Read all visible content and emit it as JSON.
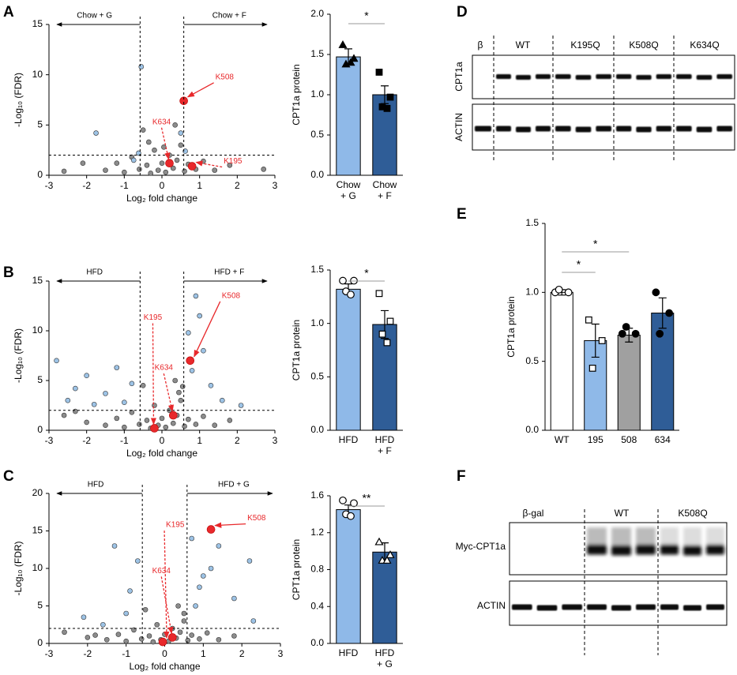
{
  "panel_labels": [
    "A",
    "B",
    "C",
    "D",
    "E",
    "F"
  ],
  "chart_data": [
    {
      "type": "scatter",
      "xlabel": "Log₂ fold change",
      "ylabel": "-Log₁₀ (FDR)",
      "xlim": [
        -3,
        3
      ],
      "xticks": [
        -3,
        -2,
        -1,
        0,
        1,
        2,
        3
      ],
      "ylim": [
        0,
        15
      ],
      "yticks": [
        0,
        5,
        10,
        15
      ],
      "hline": 2,
      "vlines": [
        -0.58,
        0.58
      ],
      "region_labels": [
        "Chow + G",
        "Chow + F"
      ],
      "series": [
        {
          "color": "#8c8c8c",
          "x": [
            -2.6,
            -2.1,
            -1.5,
            -1.2,
            -1.0,
            -0.8,
            -0.6,
            -0.4,
            -0.3,
            -0.2,
            -0.1,
            0.0,
            0.1,
            0.2,
            0.3,
            0.4,
            0.5,
            0.6,
            0.7,
            0.9,
            1.1,
            1.4,
            1.8,
            -0.5,
            0.35,
            2.7,
            -0.35,
            0.05
          ],
          "y": [
            0.4,
            1.2,
            0.5,
            1.2,
            0.3,
            1.8,
            0.6,
            1.0,
            0.2,
            2.5,
            0.5,
            1.2,
            0.3,
            2.0,
            0.7,
            1.5,
            3.0,
            0.4,
            1.1,
            0.6,
            1.4,
            0.5,
            1.0,
            4.5,
            5.0,
            0.6,
            3.3,
            2.8
          ]
        },
        {
          "color": "#9dc3e6",
          "x": [
            -0.55,
            -0.75,
            -1.75,
            0.5,
            0.62,
            -0.62
          ],
          "y": [
            10.8,
            1.5,
            4.2,
            4.2,
            2.4,
            2.2
          ]
        },
        {
          "color": "#e8282b",
          "x": [
            0.58,
            0.2,
            0.8
          ],
          "y": [
            7.4,
            1.2,
            0.9
          ],
          "labels": [
            "K508",
            "K634",
            "K195"
          ]
        }
      ]
    },
    {
      "type": "bar",
      "ylabel": "CPT1a protein",
      "categories": [
        "Chow\n+ G",
        "Chow\n+ F"
      ],
      "values": [
        1.47,
        1.0
      ],
      "errors": [
        0.1,
        0.11
      ],
      "colors": [
        "#8fb9e8",
        "#2f5d97"
      ],
      "points": [
        [
          1.62,
          1.45,
          1.38,
          1.4
        ],
        [
          1.28,
          0.97,
          0.85,
          0.83
        ]
      ],
      "markers": [
        "triangle",
        "square"
      ],
      "filled": [
        true,
        true
      ],
      "ylim": [
        0,
        2
      ],
      "yticks": [
        {
          "value": 0,
          "label": "0.0"
        },
        {
          "value": 0.5,
          "label": "0.5"
        },
        {
          "value": 1,
          "label": "1.0"
        },
        {
          "value": 1.5,
          "label": "1.5"
        },
        {
          "value": 2,
          "label": "2.0"
        }
      ],
      "significance": [
        {
          "from": 0,
          "to": 1,
          "label": "*"
        }
      ]
    },
    {
      "type": "scatter",
      "xlabel": "Log₂ fold change",
      "ylabel": "-Log₁₀ (FDR)",
      "xlim": [
        -3,
        3
      ],
      "xticks": [
        -3,
        -2,
        -1,
        0,
        1,
        2,
        3
      ],
      "ylim": [
        0,
        15
      ],
      "yticks": [
        0,
        5,
        10,
        15
      ],
      "hline": 2,
      "vlines": [
        -0.58,
        0.58
      ],
      "region_labels": [
        "HFD",
        "HFD + F"
      ],
      "series": [
        {
          "color": "#8c8c8c",
          "x": [
            -2.6,
            -2.0,
            -1.5,
            -1.2,
            -1.0,
            -0.8,
            -0.6,
            -0.4,
            -0.3,
            -0.2,
            -0.1,
            0.0,
            0.1,
            0.2,
            0.3,
            0.4,
            0.5,
            0.6,
            0.7,
            0.9,
            1.1,
            1.4,
            1.8,
            -0.5,
            0.35,
            -2.3,
            0.45,
            0.55
          ],
          "y": [
            1.5,
            0.8,
            0.5,
            1.2,
            0.3,
            1.8,
            0.6,
            1.0,
            0.2,
            2.5,
            0.5,
            1.2,
            0.3,
            2.0,
            0.7,
            1.5,
            3.0,
            0.4,
            1.1,
            0.6,
            1.4,
            0.5,
            1.0,
            4.5,
            5.0,
            1.9,
            3.8,
            4.4
          ]
        },
        {
          "color": "#9dc3e6",
          "x": [
            -2.8,
            -2.3,
            -2.0,
            -1.5,
            -1.2,
            -0.8,
            -2.5,
            -1.8,
            0.7,
            0.9,
            1.1,
            1.3,
            0.8,
            1.6,
            2.1,
            1.0,
            -1.0
          ],
          "y": [
            7.0,
            4.2,
            5.5,
            3.7,
            6.3,
            4.7,
            3.0,
            2.6,
            9.8,
            13.5,
            8.0,
            4.5,
            6.0,
            3.0,
            2.5,
            11.5,
            2.8
          ]
        },
        {
          "color": "#e8282b",
          "x": [
            0.75,
            0.3,
            -0.2
          ],
          "y": [
            7.0,
            1.5,
            0.2
          ],
          "labels": [
            "K508",
            "K634",
            "K195"
          ]
        }
      ]
    },
    {
      "type": "bar",
      "ylabel": "CPT1a protein",
      "categories": [
        "HFD",
        "HFD\n+ F"
      ],
      "values": [
        1.32,
        0.99
      ],
      "errors": [
        0.05,
        0.13
      ],
      "colors": [
        "#8fb9e8",
        "#2f5d97"
      ],
      "points": [
        [
          1.4,
          1.4,
          1.3,
          1.27
        ],
        [
          1.28,
          1.02,
          0.9,
          0.82
        ]
      ],
      "markers": [
        "circle",
        "square"
      ],
      "filled": [
        false,
        false
      ],
      "ylim": [
        0,
        1.5
      ],
      "yticks": [
        {
          "value": 0,
          "label": "0.0"
        },
        {
          "value": 0.5,
          "label": "0.5"
        },
        {
          "value": 1,
          "label": "1.0"
        },
        {
          "value": 1.5,
          "label": "1.5"
        }
      ],
      "significance": [
        {
          "from": 0,
          "to": 1,
          "label": "*"
        }
      ]
    },
    {
      "type": "scatter",
      "xlabel": "Log₂ fold change",
      "ylabel": "-Log₁₀ (FDR)",
      "xlim": [
        -3,
        3
      ],
      "xticks": [
        -3,
        -2,
        -1,
        0,
        1,
        2,
        3
      ],
      "ylim": [
        0,
        20
      ],
      "yticks": [
        0,
        5,
        10,
        15,
        20
      ],
      "hline": 2,
      "vlines": [
        -0.58,
        0.58
      ],
      "region_labels": [
        "HFD",
        "HFD + G"
      ],
      "series": [
        {
          "color": "#8c8c8c",
          "x": [
            -2.6,
            -2.0,
            -1.5,
            -1.2,
            -1.0,
            -0.8,
            -0.6,
            -0.4,
            -0.3,
            -0.2,
            -0.1,
            0.0,
            0.1,
            0.2,
            0.3,
            0.4,
            0.5,
            0.6,
            0.7,
            0.9,
            1.1,
            1.4,
            1.8,
            -0.5,
            0.35,
            -1.8,
            0.5
          ],
          "y": [
            1.5,
            0.8,
            0.5,
            1.2,
            0.3,
            1.8,
            0.6,
            1.0,
            0.2,
            2.5,
            0.5,
            1.2,
            0.3,
            2.0,
            0.7,
            1.5,
            3.0,
            0.4,
            1.1,
            0.6,
            1.4,
            0.5,
            1.0,
            4.5,
            5.0,
            1.1,
            4.0
          ]
        },
        {
          "color": "#9dc3e6",
          "x": [
            -1.3,
            -0.9,
            -0.7,
            -1.0,
            -2.1,
            -1.6,
            0.7,
            1.0,
            1.4,
            1.8,
            2.2,
            0.8,
            2.3,
            1.2,
            0.9
          ],
          "y": [
            13.0,
            7.0,
            11.0,
            4.0,
            3.5,
            2.5,
            14.0,
            9.0,
            13.0,
            6.0,
            11.0,
            5.0,
            3.0,
            10.0,
            7.5
          ]
        },
        {
          "color": "#e8282b",
          "x": [
            1.2,
            0.2,
            -0.05
          ],
          "y": [
            15.2,
            0.8,
            0.2
          ],
          "labels": [
            "K508",
            "K634",
            "K195"
          ]
        }
      ]
    },
    {
      "type": "bar",
      "ylabel": "CPT1a protein",
      "categories": [
        "HFD",
        "HFD\n+ G"
      ],
      "values": [
        1.45,
        0.99
      ],
      "errors": [
        0.05,
        0.1
      ],
      "colors": [
        "#8fb9e8",
        "#2f5d97"
      ],
      "points": [
        [
          1.55,
          1.52,
          1.4,
          1.38
        ],
        [
          1.1,
          0.96,
          0.9,
          0.9
        ]
      ],
      "markers": [
        "circle",
        "triangle"
      ],
      "filled": [
        false,
        false
      ],
      "ylim": [
        0,
        1.6
      ],
      "yticks": [
        {
          "value": 0,
          "label": "0.0"
        },
        0.4,
        0.8,
        1.2,
        1.6
      ],
      "significance": [
        {
          "from": 0,
          "to": 1,
          "label": "**"
        }
      ]
    },
    {
      "type": "bar",
      "ylabel": "CPT1a protein",
      "categories": [
        "WT",
        "195",
        "508",
        "634"
      ],
      "values": [
        1.0,
        0.65,
        0.69,
        0.85
      ],
      "errors": [
        0.02,
        0.12,
        0.05,
        0.11
      ],
      "colors": [
        "#ffffff",
        "#8fb9e8",
        "#a0a0a0",
        "#2f5d97"
      ],
      "points": [
        [
          1.0,
          1.0,
          1.02
        ],
        [
          0.8,
          0.65,
          0.45
        ],
        [
          0.7,
          0.7,
          0.75
        ],
        [
          1.0,
          0.85,
          0.7
        ]
      ],
      "markers": [
        "circle",
        "square",
        "circle",
        "circle"
      ],
      "filled": [
        false,
        false,
        true,
        true
      ],
      "ylim": [
        0,
        1.5
      ],
      "yticks": [
        {
          "value": 0,
          "label": "0.0"
        },
        {
          "value": 0.5,
          "label": "0.5"
        },
        {
          "value": 1,
          "label": "1.0"
        },
        {
          "value": 1.5,
          "label": "1.5"
        }
      ],
      "significance": [
        {
          "from": 0,
          "to": 1,
          "label": "*"
        },
        {
          "from": 0,
          "to": 2,
          "label": "*"
        }
      ]
    }
  ],
  "blots": [
    {
      "lanes": [
        "β",
        "WT",
        "K195Q",
        "K508Q",
        "K634Q"
      ],
      "rows": [
        "CPT1a",
        "ACTIN"
      ]
    },
    {
      "lanes": [
        "β-gal",
        "WT",
        "K508Q"
      ],
      "rows": [
        "Myc-CPT1a",
        "ACTIN"
      ]
    }
  ]
}
